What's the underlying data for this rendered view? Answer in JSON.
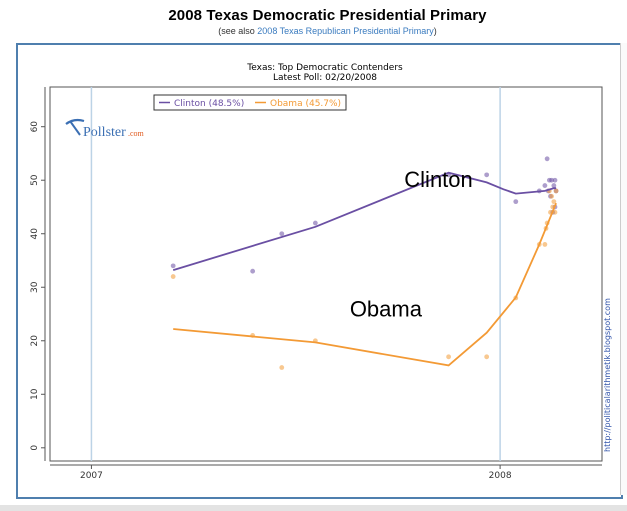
{
  "page": {
    "title": "2008 Texas Democratic Presidential Primary",
    "subtitle_prefix": "(see also ",
    "subtitle_link": "2008 Texas Republican Presidential Primary",
    "subtitle_suffix": ")"
  },
  "logo": {
    "text": "Pollster",
    "suffix": ".com"
  },
  "credit": "http://politicalarithmetik.blogspot.com",
  "colors": {
    "clinton": "#6a4fa3",
    "obama": "#f39a35",
    "frame": "#4f7fae",
    "year_line": "#bcd3e6"
  },
  "chart_data": {
    "type": "line",
    "title": "Texas: Top Democratic Contenders",
    "subtitle": "Latest Poll: 02/20/2008",
    "xlabel": "",
    "ylabel": "",
    "ylim": [
      0,
      65
    ],
    "yticks": [
      0,
      10,
      20,
      30,
      40,
      50,
      60
    ],
    "xlim": [
      "2006-11-25",
      "2008-04-01"
    ],
    "xticks": [
      {
        "date": "2007-01-01",
        "label": "2007"
      },
      {
        "date": "2008-01-01",
        "label": "2008"
      }
    ],
    "legend_position": "top-left",
    "annotations": [
      {
        "text": "Clinton",
        "x": "2007-11-07",
        "y": 48.7
      },
      {
        "text": "Obama",
        "x": "2007-09-21",
        "y": 24.5
      }
    ],
    "series": [
      {
        "name": "Clinton",
        "legend_label": "Clinton (48.5%)",
        "color": "#6a4fa3",
        "trend": [
          {
            "x": "2007-03-15",
            "y": 33.2
          },
          {
            "x": "2007-07-20",
            "y": 41.3
          },
          {
            "x": "2007-11-16",
            "y": 51.4
          },
          {
            "x": "2007-12-20",
            "y": 49.6
          },
          {
            "x": "2008-01-04",
            "y": 48.3
          },
          {
            "x": "2008-01-15",
            "y": 47.5
          },
          {
            "x": "2008-02-10",
            "y": 48.0
          },
          {
            "x": "2008-02-18",
            "y": 48.5
          },
          {
            "x": "2008-02-20",
            "y": 48.5
          }
        ],
        "polls": [
          {
            "x": "2007-03-15",
            "y": 34
          },
          {
            "x": "2007-05-25",
            "y": 33
          },
          {
            "x": "2007-06-20",
            "y": 40
          },
          {
            "x": "2007-07-20",
            "y": 42
          },
          {
            "x": "2007-11-16",
            "y": 51
          },
          {
            "x": "2007-12-20",
            "y": 51
          },
          {
            "x": "2008-01-15",
            "y": 46
          },
          {
            "x": "2008-02-05",
            "y": 48
          },
          {
            "x": "2008-02-10",
            "y": 49
          },
          {
            "x": "2008-02-12",
            "y": 54
          },
          {
            "x": "2008-02-13",
            "y": 48
          },
          {
            "x": "2008-02-14",
            "y": 50
          },
          {
            "x": "2008-02-15",
            "y": 47
          },
          {
            "x": "2008-02-16",
            "y": 50
          },
          {
            "x": "2008-02-17",
            "y": 44
          },
          {
            "x": "2008-02-18",
            "y": 49
          },
          {
            "x": "2008-02-19",
            "y": 50
          },
          {
            "x": "2008-02-19",
            "y": 45
          },
          {
            "x": "2008-02-20",
            "y": 48
          }
        ]
      },
      {
        "name": "Obama",
        "legend_label": "Obama (45.7%)",
        "color": "#f39a35",
        "trend": [
          {
            "x": "2007-03-15",
            "y": 22.2
          },
          {
            "x": "2007-07-20",
            "y": 19.7
          },
          {
            "x": "2007-11-16",
            "y": 15.4
          },
          {
            "x": "2007-12-20",
            "y": 21.5
          },
          {
            "x": "2008-01-15",
            "y": 28.1
          },
          {
            "x": "2008-02-05",
            "y": 38.0
          },
          {
            "x": "2008-02-20",
            "y": 45.7
          }
        ],
        "polls": [
          {
            "x": "2007-03-15",
            "y": 32
          },
          {
            "x": "2007-05-25",
            "y": 21
          },
          {
            "x": "2007-06-20",
            "y": 15
          },
          {
            "x": "2007-07-20",
            "y": 20
          },
          {
            "x": "2007-11-16",
            "y": 17
          },
          {
            "x": "2007-12-20",
            "y": 17
          },
          {
            "x": "2008-01-15",
            "y": 28
          },
          {
            "x": "2008-02-05",
            "y": 38
          },
          {
            "x": "2008-02-10",
            "y": 38
          },
          {
            "x": "2008-02-11",
            "y": 41
          },
          {
            "x": "2008-02-12",
            "y": 42
          },
          {
            "x": "2008-02-14",
            "y": 48
          },
          {
            "x": "2008-02-15",
            "y": 44
          },
          {
            "x": "2008-02-16",
            "y": 47
          },
          {
            "x": "2008-02-17",
            "y": 45
          },
          {
            "x": "2008-02-18",
            "y": 46
          },
          {
            "x": "2008-02-19",
            "y": 44
          },
          {
            "x": "2008-02-20",
            "y": 48
          }
        ]
      }
    ]
  }
}
